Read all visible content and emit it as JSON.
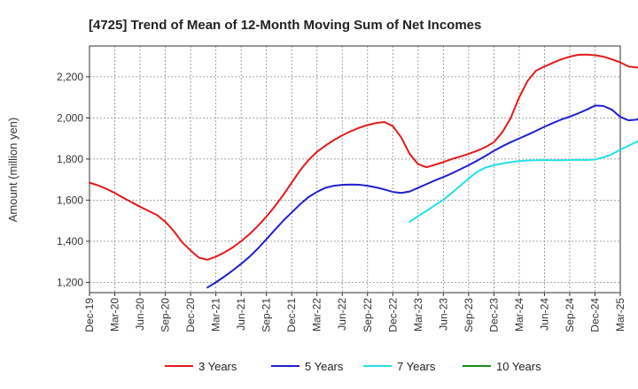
{
  "chart_data": {
    "type": "line",
    "title": "[4725]  Trend of Mean of 12-Month Moving Sum of Net Incomes",
    "xlabel": "",
    "ylabel": "Amount (million yen)",
    "ylim": [
      1150,
      2350
    ],
    "y_ticks": [
      1200,
      1400,
      1600,
      1800,
      2000,
      2200
    ],
    "y_tick_labels": [
      "1,200",
      "1,400",
      "1,600",
      "1,800",
      "2,000",
      "2,200"
    ],
    "x_ticks": [
      "2019-12",
      "2020-03",
      "2020-06",
      "2020-09",
      "2020-12",
      "2021-03",
      "2021-06",
      "2021-09",
      "2021-12",
      "2022-03",
      "2022-06",
      "2022-09",
      "2022-12",
      "2023-03",
      "2023-06",
      "2023-09",
      "2023-12",
      "2024-03",
      "2024-06",
      "2024-09",
      "2024-12",
      "2025-03"
    ],
    "x_tick_labels": [
      "Dec-19",
      "Mar-20",
      "Jun-20",
      "Sep-20",
      "Dec-20",
      "Mar-21",
      "Jun-21",
      "Sep-21",
      "Dec-21",
      "Mar-22",
      "Jun-22",
      "Sep-22",
      "Dec-22",
      "Mar-23",
      "Jun-23",
      "Sep-23",
      "Dec-23",
      "Mar-24",
      "Jun-24",
      "Sep-24",
      "Dec-24",
      "Mar-25"
    ],
    "grid": true,
    "legend_position": "bottom",
    "series": [
      {
        "name": "3 Years",
        "color": "#e31a1c",
        "points": [
          [
            "2019-12",
            1685
          ],
          [
            "2020-01",
            1672
          ],
          [
            "2020-02",
            1655
          ],
          [
            "2020-03",
            1635
          ],
          [
            "2020-04",
            1612
          ],
          [
            "2020-05",
            1590
          ],
          [
            "2020-06",
            1568
          ],
          [
            "2020-07",
            1548
          ],
          [
            "2020-08",
            1528
          ],
          [
            "2020-09",
            1495
          ],
          [
            "2020-10",
            1450
          ],
          [
            "2020-11",
            1395
          ],
          [
            "2020-12",
            1355
          ],
          [
            "2021-01",
            1320
          ],
          [
            "2021-02",
            1310
          ],
          [
            "2021-03",
            1325
          ],
          [
            "2021-04",
            1345
          ],
          [
            "2021-05",
            1370
          ],
          [
            "2021-06",
            1400
          ],
          [
            "2021-07",
            1435
          ],
          [
            "2021-08",
            1475
          ],
          [
            "2021-09",
            1520
          ],
          [
            "2021-10",
            1570
          ],
          [
            "2021-11",
            1625
          ],
          [
            "2021-12",
            1685
          ],
          [
            "2022-01",
            1745
          ],
          [
            "2022-02",
            1795
          ],
          [
            "2022-03",
            1835
          ],
          [
            "2022-04",
            1865
          ],
          [
            "2022-05",
            1892
          ],
          [
            "2022-06",
            1915
          ],
          [
            "2022-07",
            1935
          ],
          [
            "2022-08",
            1952
          ],
          [
            "2022-09",
            1965
          ],
          [
            "2022-10",
            1975
          ],
          [
            "2022-11",
            1980
          ],
          [
            "2022-12",
            1960
          ],
          [
            "2023-01",
            1905
          ],
          [
            "2023-02",
            1825
          ],
          [
            "2023-03",
            1775
          ],
          [
            "2023-04",
            1760
          ],
          [
            "2023-05",
            1772
          ],
          [
            "2023-06",
            1785
          ],
          [
            "2023-07",
            1800
          ],
          [
            "2023-08",
            1812
          ],
          [
            "2023-09",
            1825
          ],
          [
            "2023-10",
            1840
          ],
          [
            "2023-11",
            1858
          ],
          [
            "2023-12",
            1882
          ],
          [
            "2024-01",
            1930
          ],
          [
            "2024-02",
            2000
          ],
          [
            "2024-03",
            2100
          ],
          [
            "2024-04",
            2180
          ],
          [
            "2024-05",
            2230
          ],
          [
            "2024-06",
            2250
          ],
          [
            "2024-07",
            2268
          ],
          [
            "2024-08",
            2285
          ],
          [
            "2024-09",
            2298
          ],
          [
            "2024-10",
            2307
          ],
          [
            "2024-11",
            2308
          ],
          [
            "2024-12",
            2305
          ],
          [
            "2025-01",
            2298
          ],
          [
            "2025-02",
            2285
          ],
          [
            "2025-03",
            2270
          ],
          [
            "2025-04",
            2250
          ],
          [
            "2025-05",
            2245
          ],
          [
            "2025-06",
            2250
          ],
          [
            "2025-07",
            2265
          ]
        ]
      },
      {
        "name": "5 Years",
        "color": "#1f1fd0",
        "points": [
          [
            "2021-02",
            1175
          ],
          [
            "2021-03",
            1200
          ],
          [
            "2021-04",
            1228
          ],
          [
            "2021-05",
            1258
          ],
          [
            "2021-06",
            1290
          ],
          [
            "2021-07",
            1325
          ],
          [
            "2021-08",
            1365
          ],
          [
            "2021-09",
            1410
          ],
          [
            "2021-10",
            1455
          ],
          [
            "2021-11",
            1500
          ],
          [
            "2021-12",
            1540
          ],
          [
            "2022-01",
            1580
          ],
          [
            "2022-02",
            1615
          ],
          [
            "2022-03",
            1640
          ],
          [
            "2022-04",
            1660
          ],
          [
            "2022-05",
            1670
          ],
          [
            "2022-06",
            1674
          ],
          [
            "2022-07",
            1676
          ],
          [
            "2022-08",
            1675
          ],
          [
            "2022-09",
            1670
          ],
          [
            "2022-10",
            1662
          ],
          [
            "2022-11",
            1652
          ],
          [
            "2022-12",
            1640
          ],
          [
            "2023-01",
            1635
          ],
          [
            "2023-02",
            1642
          ],
          [
            "2023-03",
            1660
          ],
          [
            "2023-04",
            1678
          ],
          [
            "2023-05",
            1696
          ],
          [
            "2023-06",
            1712
          ],
          [
            "2023-07",
            1730
          ],
          [
            "2023-08",
            1750
          ],
          [
            "2023-09",
            1770
          ],
          [
            "2023-10",
            1792
          ],
          [
            "2023-11",
            1815
          ],
          [
            "2023-12",
            1840
          ],
          [
            "2024-01",
            1862
          ],
          [
            "2024-02",
            1882
          ],
          [
            "2024-03",
            1900
          ],
          [
            "2024-04",
            1918
          ],
          [
            "2024-05",
            1937
          ],
          [
            "2024-06",
            1957
          ],
          [
            "2024-07",
            1975
          ],
          [
            "2024-08",
            1992
          ],
          [
            "2024-09",
            2006
          ],
          [
            "2024-10",
            2022
          ],
          [
            "2024-11",
            2040
          ],
          [
            "2024-12",
            2060
          ],
          [
            "2025-01",
            2058
          ],
          [
            "2025-02",
            2040
          ],
          [
            "2025-03",
            2005
          ],
          [
            "2025-04",
            1988
          ],
          [
            "2025-05",
            1992
          ],
          [
            "2025-06",
            2022
          ]
        ]
      },
      {
        "name": "7 Years",
        "color": "#22e0e6",
        "points": [
          [
            "2023-02",
            1495
          ],
          [
            "2023-03",
            1522
          ],
          [
            "2023-04",
            1548
          ],
          [
            "2023-05",
            1575
          ],
          [
            "2023-06",
            1602
          ],
          [
            "2023-07",
            1635
          ],
          [
            "2023-08",
            1670
          ],
          [
            "2023-09",
            1705
          ],
          [
            "2023-10",
            1737
          ],
          [
            "2023-11",
            1758
          ],
          [
            "2023-12",
            1770
          ],
          [
            "2024-01",
            1778
          ],
          [
            "2024-02",
            1785
          ],
          [
            "2024-03",
            1790
          ],
          [
            "2024-04",
            1793
          ],
          [
            "2024-05",
            1794
          ],
          [
            "2024-06",
            1795
          ],
          [
            "2024-07",
            1794
          ],
          [
            "2024-08",
            1794
          ],
          [
            "2024-09",
            1795
          ],
          [
            "2024-10",
            1796
          ],
          [
            "2024-11",
            1795
          ],
          [
            "2024-12",
            1798
          ],
          [
            "2025-01",
            1808
          ],
          [
            "2025-02",
            1823
          ],
          [
            "2025-03",
            1845
          ],
          [
            "2025-04",
            1865
          ],
          [
            "2025-05",
            1885
          ],
          [
            "2025-06",
            1905
          ]
        ]
      },
      {
        "name": "10 Years",
        "color": "#1a8a1a",
        "points": []
      }
    ]
  }
}
